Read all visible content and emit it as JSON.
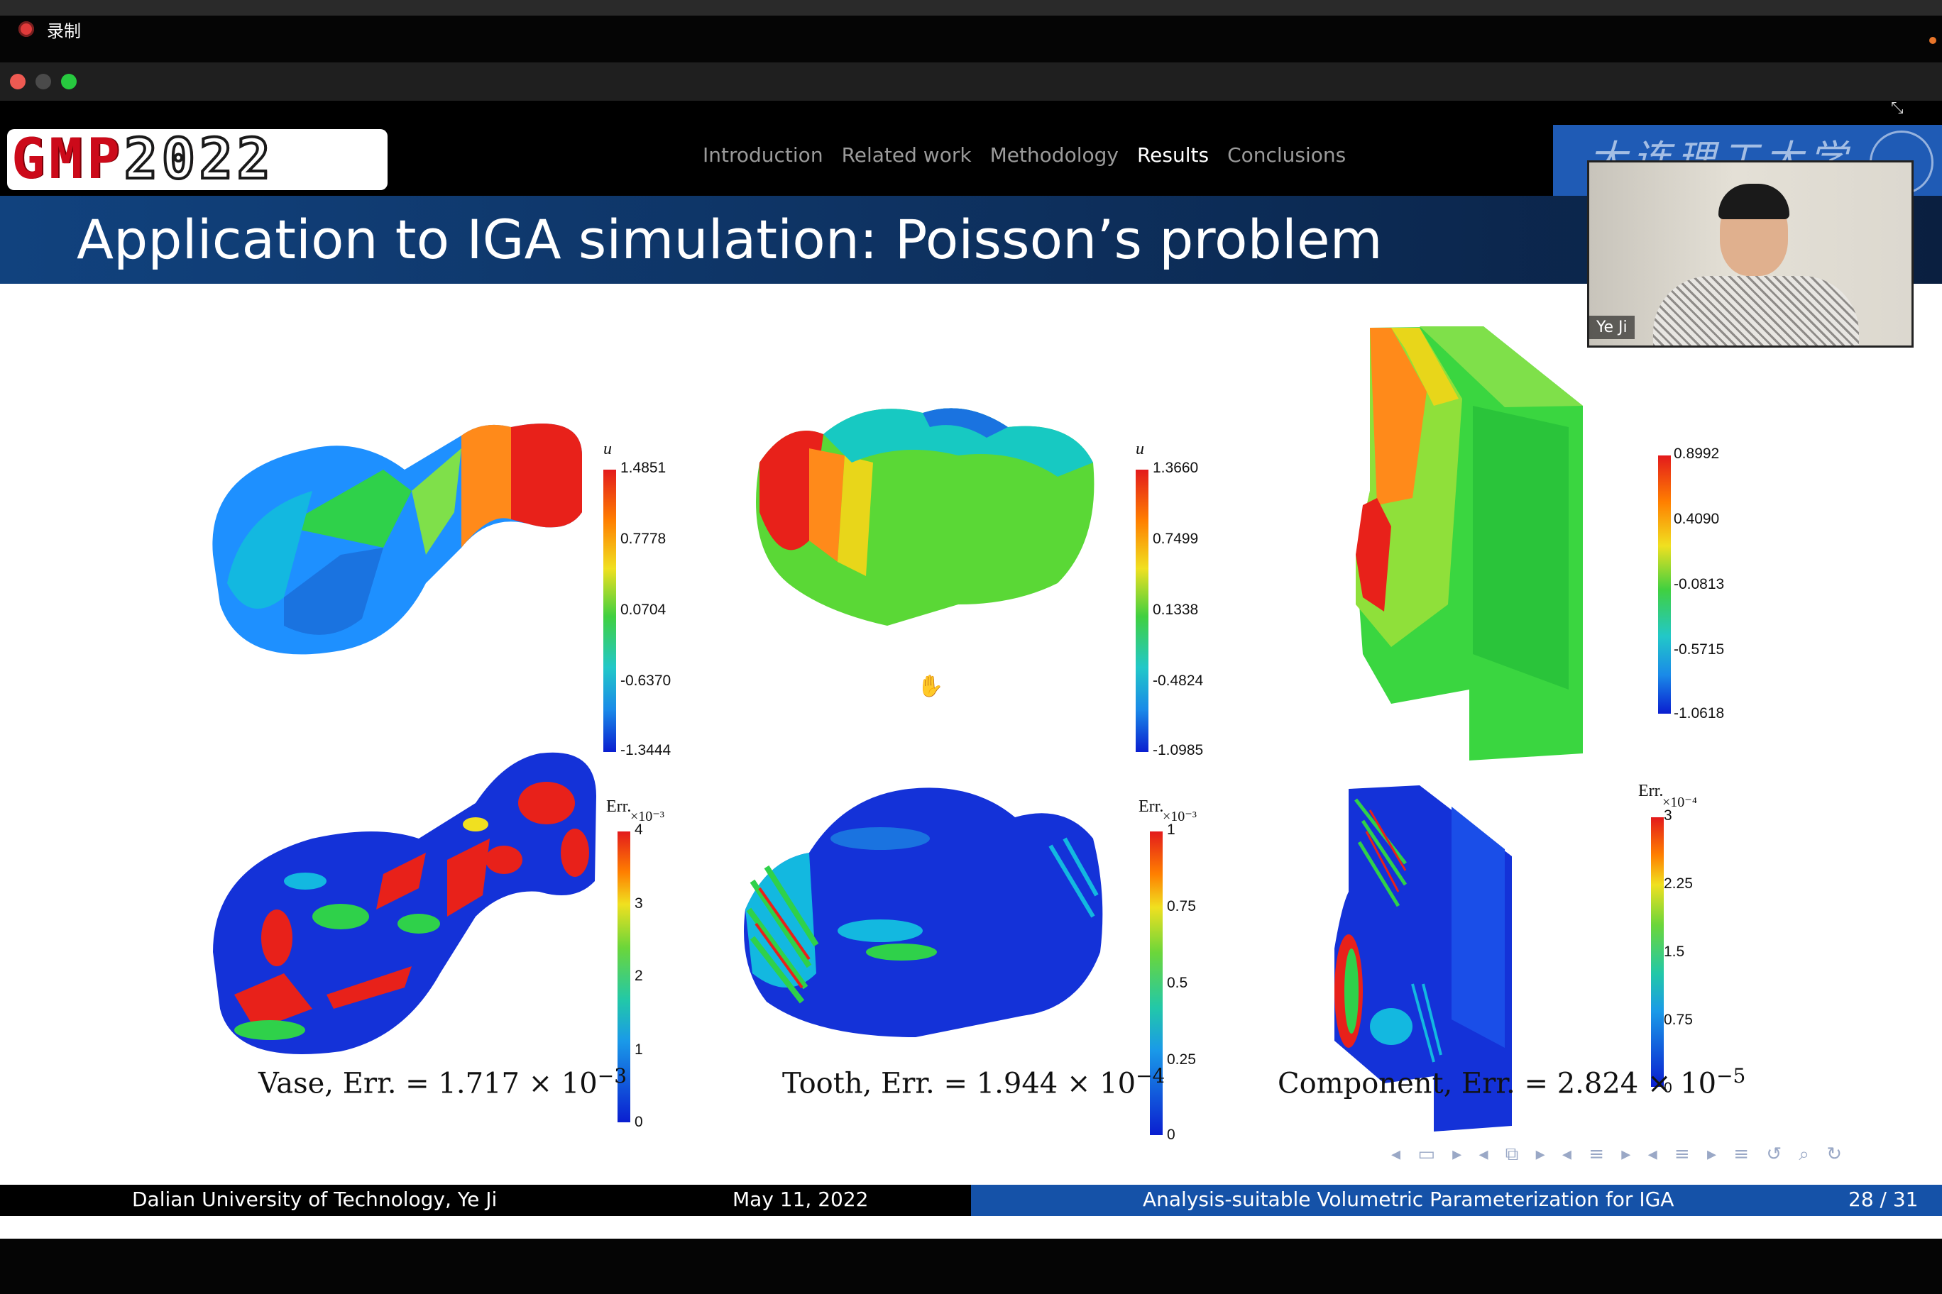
{
  "recording": {
    "label": "录制"
  },
  "slide": {
    "logo": {
      "text": "GMP",
      "year": "2022"
    },
    "nav": [
      "Introduction",
      "Related work",
      "Methodology",
      "Results",
      "Conclusions"
    ],
    "nav_active": "Results",
    "university_banner": "大连理工大学",
    "title": "Application to IGA simulation:  Poisson’s problem",
    "plots": [
      {
        "name": "Vase",
        "solution": {
          "var": "u",
          "ticks": [
            "1.4851",
            "0.7778",
            "0.0704",
            "-0.6370",
            "-1.3444"
          ]
        },
        "error": {
          "var": "Err.",
          "exponent": "×10⁻³",
          "ticks": [
            "4",
            "3",
            "2",
            "1",
            "0"
          ]
        },
        "caption": {
          "prefix": "Vase, Err.",
          "value": "= 1.717 × 10",
          "exp": "−3"
        }
      },
      {
        "name": "Tooth",
        "solution": {
          "var": "u",
          "ticks": [
            "1.3660",
            "0.7499",
            "0.1338",
            "-0.4824",
            "-1.0985"
          ]
        },
        "error": {
          "var": "Err.",
          "exponent": "×10⁻³",
          "ticks": [
            "1",
            "0.75",
            "0.5",
            "0.25",
            "0"
          ]
        },
        "caption": {
          "prefix": "Tooth, Err.",
          "value": "= 1.944 × 10",
          "exp": "−4"
        }
      },
      {
        "name": "Component",
        "solution": {
          "var": "",
          "ticks": [
            "0.8992",
            "0.4090",
            "-0.0813",
            "-0.5715",
            "-1.0618"
          ]
        },
        "error": {
          "var": "Err.",
          "exponent": "×10⁻⁴",
          "ticks": [
            "3",
            "2.25",
            "1.5",
            "0.75",
            "0"
          ]
        },
        "caption": {
          "prefix": "Component, Err.",
          "value": "= 2.824 × 10",
          "exp": "−5"
        }
      }
    ],
    "footer": {
      "left": "Dalian University of Technology, Ye Ji",
      "date": "May 11, 2022",
      "title": "Analysis-suitable Volumetric Parameterization for IGA",
      "page": "28 / 31"
    },
    "beamer_nav_glyphs": "◂ ▭ ▸ ◂ ⧉ ▸ ◂ ≡ ▸ ◂ ≡ ▸ ≡ ↺ ⌕ ↻"
  },
  "webcam": {
    "name": "Ye Ji"
  },
  "colors": {
    "title_band": "#11427e",
    "footer_blue": "#1552a8",
    "logo_red": "#cc0a1a"
  }
}
